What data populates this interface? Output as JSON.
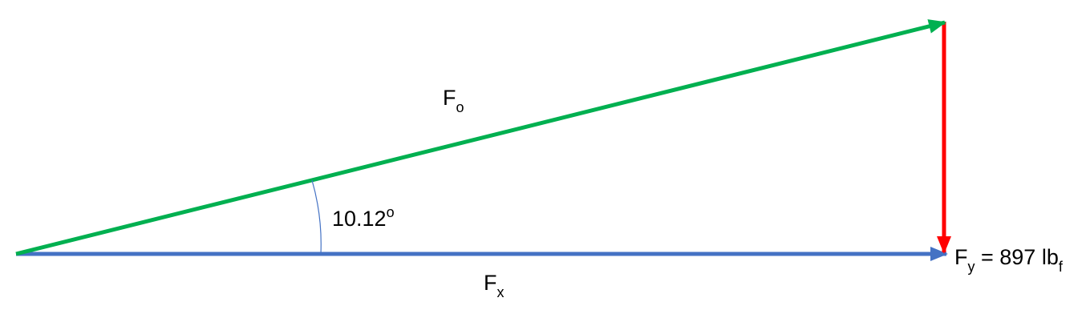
{
  "diagram": {
    "colors": {
      "resultant": "#00B050",
      "horizontal": "#4472C4",
      "vertical": "#FF0000",
      "angle_arc": "#4472C4",
      "text": "#000000",
      "background": "#FFFFFF"
    },
    "labels": {
      "resultant": {
        "main": "F",
        "sub": "o"
      },
      "horizontal": {
        "main": "F",
        "sub": "x"
      },
      "vertical": {
        "main": "F",
        "sub": "y",
        "middle": " = 897 lb",
        "unit_sub": "f"
      },
      "angle": {
        "value": "10.12",
        "degree": "o"
      }
    }
  }
}
